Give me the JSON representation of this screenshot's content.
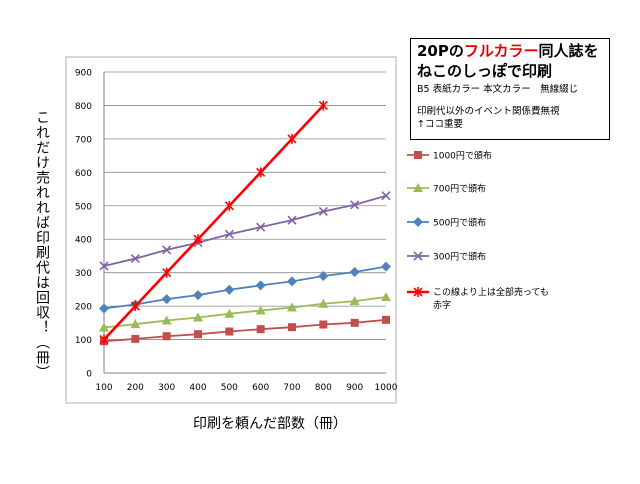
{
  "note": {
    "prefix": "20P",
    "highlight": "フルカラー",
    "line1_rest": "同人誌を",
    "line2": "ねこのしっぽで印刷",
    "spec": "B5 表紙カラー 本文カラー　無線綴じ",
    "remark_line1": "印刷代以外のイベント関係費無視",
    "remark_line2": "↑ココ重要"
  },
  "colors": {
    "s1000": "#c0504d",
    "s700": "#9bbb59",
    "s500": "#4f81bd",
    "s300": "#8064a2",
    "breakeven": "#ff0000",
    "grid": "#8c8c8c"
  },
  "chart_data": {
    "type": "line",
    "xlabel": "印刷を頼んだ部数（冊）",
    "ylabel": "これだけ売れれば印刷代は回収！（冊）",
    "categories": [
      "100",
      "200",
      "300",
      "400",
      "500",
      "600",
      "700",
      "800",
      "900",
      "1000"
    ],
    "ylim": [
      0,
      900
    ],
    "yticks": [
      "0",
      "100",
      "200",
      "300",
      "400",
      "500",
      "600",
      "700",
      "800",
      "900"
    ],
    "grid": true,
    "legend_position": "right",
    "series": [
      {
        "name": "1000円で頒布",
        "color": "#c0504d",
        "marker": "square",
        "values": [
          95,
          102,
          110,
          116,
          124,
          131,
          137,
          145,
          150,
          159
        ]
      },
      {
        "name": "700円で頒布",
        "color": "#9bbb59",
        "marker": "triangle",
        "values": [
          136,
          146,
          157,
          166,
          177,
          187,
          196,
          207,
          215,
          227
        ]
      },
      {
        "name": "500円で頒布",
        "color": "#4f81bd",
        "marker": "diamond",
        "values": [
          193,
          205,
          221,
          233,
          249,
          262,
          274,
          290,
          302,
          318
        ]
      },
      {
        "name": "300円で頒布",
        "color": "#8064a2",
        "marker": "x",
        "values": [
          320,
          342,
          368,
          390,
          415,
          436,
          457,
          483,
          503,
          530
        ]
      },
      {
        "name": "この線より上は全部売っても赤字",
        "legend_line1": "この線より上は全部売っても",
        "legend_line2": "赤字",
        "color": "#ff0000",
        "marker": "star",
        "line_width": "thick",
        "values": [
          100,
          200,
          300,
          400,
          500,
          600,
          700,
          800,
          null,
          null
        ]
      }
    ]
  }
}
